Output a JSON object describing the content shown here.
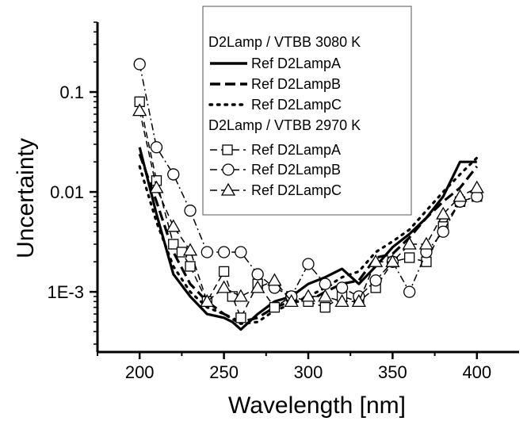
{
  "chart_data": {
    "type": "line",
    "xlabel": "Wavelength [nm]",
    "ylabel": "Uncertainty",
    "xlim": [
      175,
      425
    ],
    "ylim": [
      0.00025,
      0.5
    ],
    "yscale": "log",
    "x_ticks": [
      200,
      250,
      300,
      350,
      400
    ],
    "x_tick_labels": [
      "200",
      "250",
      "300",
      "350",
      "400"
    ],
    "y_ticks": [
      0.001,
      0.01,
      0.1
    ],
    "y_tick_labels": [
      "1E-3",
      "0.01",
      "0.1"
    ],
    "grid": false,
    "legend": {
      "placement": "top-center",
      "groups": [
        {
          "title": "D2Lamp / VTBB 3080 K",
          "entries": [
            "Ref D2LampA",
            "Ref D2LampB",
            "Ref D2LampC"
          ]
        },
        {
          "title": "D2Lamp / VTBB 2970 K",
          "entries": [
            "Ref D2LampA",
            "Ref D2LampB",
            "Ref D2LampC"
          ]
        }
      ]
    },
    "series": [
      {
        "name": "Ref D2LampA",
        "group": "D2Lamp / VTBB 3080 K",
        "style": "solid",
        "marker": "none",
        "x": [
          200,
          210,
          220,
          230,
          240,
          250,
          255,
          260,
          270,
          280,
          290,
          300,
          310,
          320,
          330,
          340,
          350,
          360,
          370,
          380,
          390,
          400
        ],
        "y": [
          0.028,
          0.006,
          0.0015,
          0.0009,
          0.0006,
          0.00055,
          0.0005,
          0.00042,
          0.0006,
          0.0008,
          0.0009,
          0.0012,
          0.0014,
          0.0017,
          0.0012,
          0.0018,
          0.0028,
          0.0038,
          0.0055,
          0.009,
          0.02,
          0.02
        ]
      },
      {
        "name": "Ref D2LampB",
        "group": "D2Lamp / VTBB 3080 K",
        "style": "dash",
        "marker": "none",
        "x": [
          200,
          210,
          220,
          230,
          240,
          250,
          260,
          270,
          280,
          290,
          300,
          310,
          320,
          330,
          340,
          350,
          360,
          370,
          380,
          390,
          400
        ],
        "y": [
          0.024,
          0.008,
          0.0025,
          0.0012,
          0.0008,
          0.0006,
          0.0005,
          0.00055,
          0.0007,
          0.0008,
          0.0008,
          0.001,
          0.0012,
          0.0013,
          0.0022,
          0.0024,
          0.0035,
          0.0055,
          0.008,
          0.011,
          0.018
        ]
      },
      {
        "name": "Ref D2LampC",
        "group": "D2Lamp / VTBB 3080 K",
        "style": "dot",
        "marker": "none",
        "x": [
          200,
          210,
          220,
          230,
          240,
          250,
          260,
          270,
          280,
          290,
          300,
          310,
          320,
          330,
          340,
          350,
          360,
          370,
          380,
          390,
          400
        ],
        "y": [
          0.018,
          0.005,
          0.0018,
          0.001,
          0.0007,
          0.0006,
          0.00048,
          0.0005,
          0.00065,
          0.00075,
          0.0009,
          0.0011,
          0.0014,
          0.0016,
          0.0025,
          0.0032,
          0.0042,
          0.0065,
          0.01,
          0.015,
          0.022
        ]
      },
      {
        "name": "Ref D2LampA",
        "group": "D2Lamp / VTBB 2970 K",
        "style": "dash",
        "marker": "square",
        "x": [
          200,
          210,
          220,
          225,
          230,
          240,
          250,
          255,
          260,
          270,
          280,
          290,
          300,
          310,
          320,
          330,
          340,
          350,
          360,
          370,
          380,
          390,
          400
        ],
        "y": [
          0.08,
          0.013,
          0.003,
          0.0025,
          0.0018,
          0.0008,
          0.0016,
          0.0009,
          0.00055,
          0.0012,
          0.0007,
          0.0009,
          0.0008,
          0.0007,
          0.0009,
          0.0008,
          0.0011,
          0.002,
          0.0022,
          0.002,
          0.0045,
          0.008,
          0.009
        ]
      },
      {
        "name": "Ref D2LampB",
        "group": "D2Lamp / VTBB 2970 K",
        "style": "dashdot",
        "marker": "circle",
        "x": [
          200,
          210,
          220,
          230,
          240,
          250,
          260,
          270,
          280,
          290,
          300,
          310,
          320,
          330,
          340,
          350,
          360,
          370,
          380,
          390,
          400
        ],
        "y": [
          0.19,
          0.028,
          0.015,
          0.0065,
          0.0025,
          0.0025,
          0.0025,
          0.0015,
          0.0011,
          0.0009,
          0.0019,
          0.0012,
          0.0011,
          0.0009,
          0.0013,
          0.002,
          0.001,
          0.0025,
          0.004,
          0.008,
          0.009
        ]
      },
      {
        "name": "Ref D2LampC",
        "group": "D2Lamp / VTBB 2970 K",
        "style": "dash",
        "marker": "triangle",
        "x": [
          200,
          210,
          220,
          230,
          240,
          250,
          260,
          270,
          280,
          290,
          300,
          310,
          320,
          330,
          340,
          350,
          360,
          370,
          380,
          390,
          400
        ],
        "y": [
          0.065,
          0.011,
          0.0045,
          0.0026,
          0.0008,
          0.0011,
          0.0009,
          0.0011,
          0.0013,
          0.0008,
          0.0009,
          0.0009,
          0.0008,
          0.0008,
          0.002,
          0.002,
          0.003,
          0.003,
          0.006,
          0.009,
          0.011
        ]
      }
    ]
  }
}
